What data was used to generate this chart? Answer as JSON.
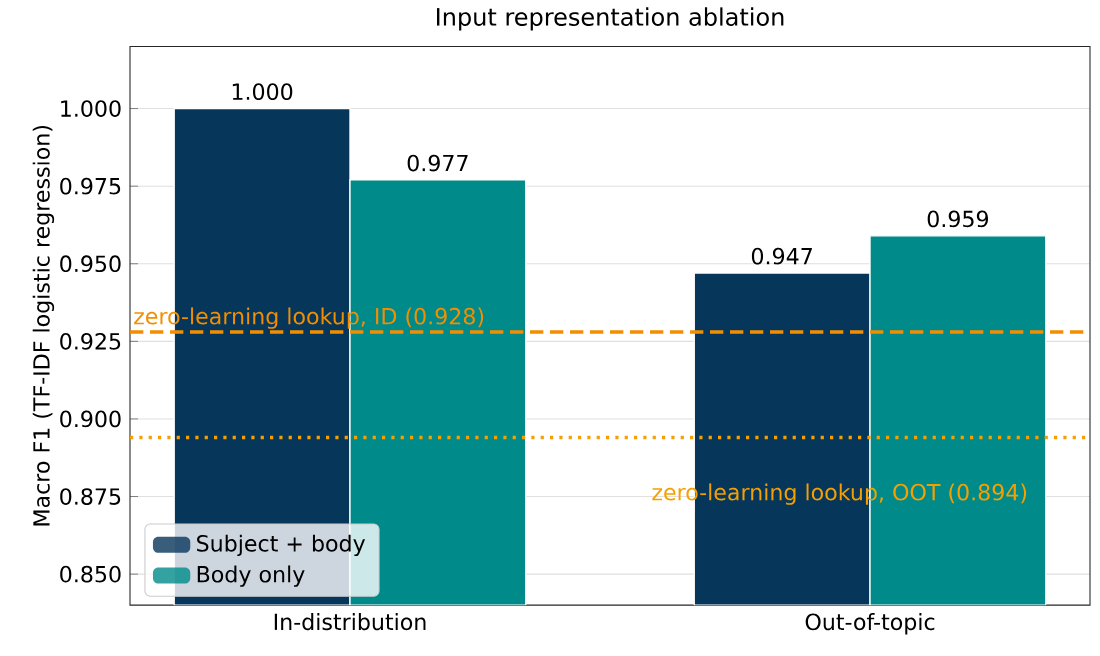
{
  "chart_data": {
    "type": "bar",
    "title": "Input representation ablation",
    "ylabel": "Macro F1 (TF-IDF logistic regression)",
    "categories": [
      "In-distribution",
      "Out-of-topic"
    ],
    "series": [
      {
        "name": "Subject + body",
        "color": "#07365b",
        "values": [
          1.0,
          0.947
        ],
        "value_labels": [
          "1.000",
          "0.947"
        ]
      },
      {
        "name": "Body only",
        "color": "#008b8a",
        "values": [
          0.977,
          0.959
        ],
        "value_labels": [
          "0.977",
          "0.959"
        ]
      }
    ],
    "ylim": [
      0.84,
      1.02
    ],
    "yticks": [
      {
        "value": 0.85,
        "label": "0.850"
      },
      {
        "value": 0.875,
        "label": "0.875"
      },
      {
        "value": 0.9,
        "label": "0.900"
      },
      {
        "value": 0.925,
        "label": "0.925"
      },
      {
        "value": 0.95,
        "label": "0.950"
      },
      {
        "value": 0.975,
        "label": "0.975"
      },
      {
        "value": 1.0,
        "label": "1.000"
      }
    ],
    "ref_lines": [
      {
        "axis": "y",
        "value": 0.928,
        "label": "zero-learning lookup, ID (0.928)",
        "color": "#f28e00",
        "line_style": "dashed"
      },
      {
        "axis": "y",
        "value": 0.894,
        "label": "zero-learning lookup, OOT (0.894)",
        "color": "#f5a000",
        "line_style": "dotted"
      }
    ],
    "grid": "y",
    "legend": "bottom left"
  }
}
